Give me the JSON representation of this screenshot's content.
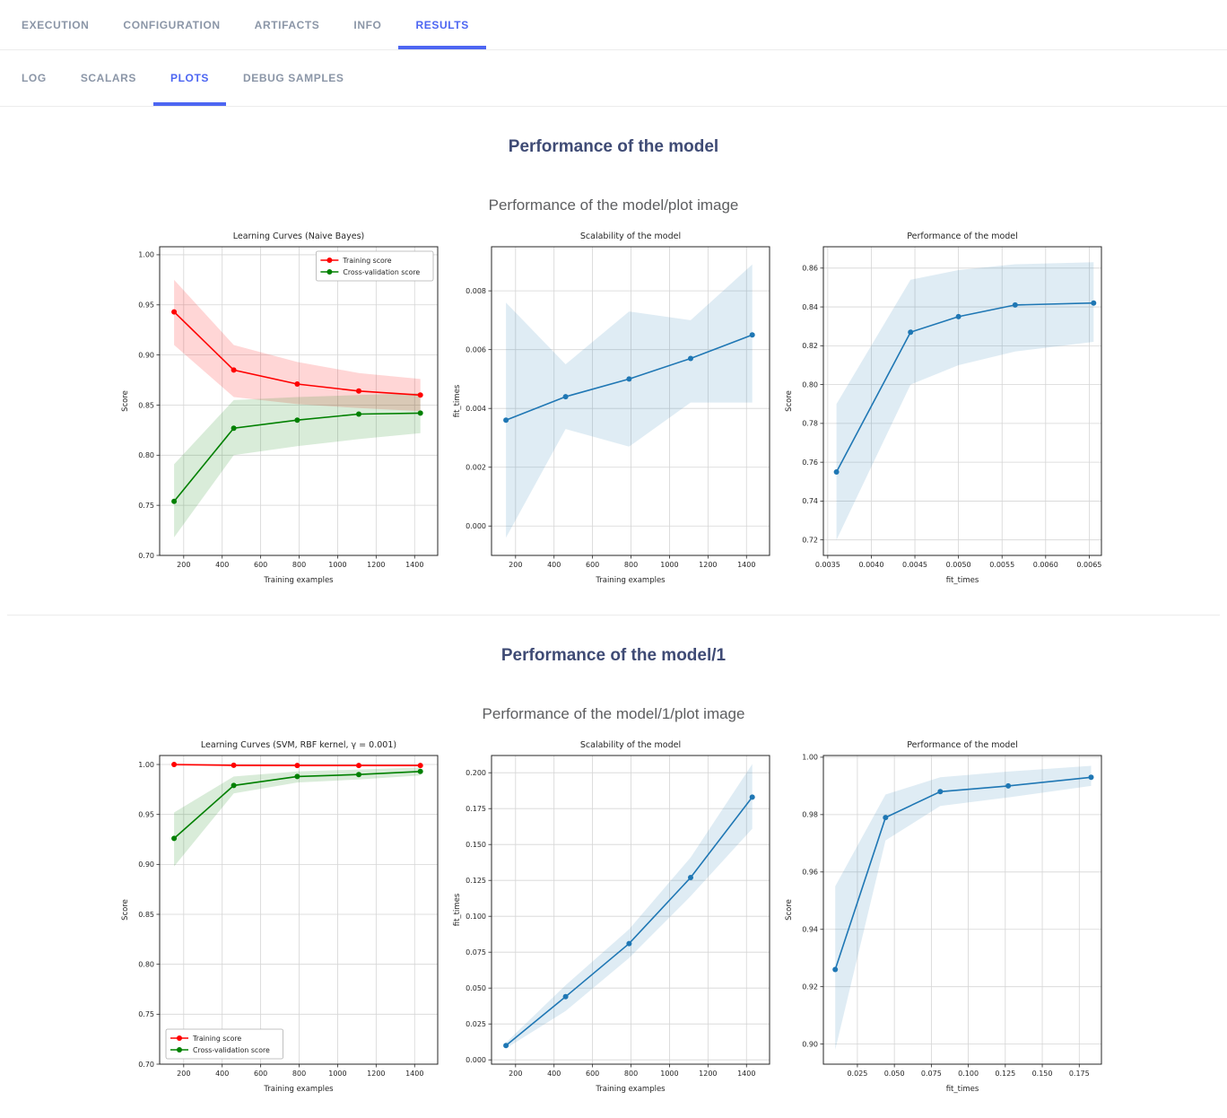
{
  "header": {
    "tabs": [
      "EXECUTION",
      "CONFIGURATION",
      "ARTIFACTS",
      "INFO",
      "RESULTS"
    ],
    "active_tab": "RESULTS",
    "subtabs": [
      "LOG",
      "SCALARS",
      "PLOTS",
      "DEBUG SAMPLES"
    ],
    "active_subtab": "PLOTS",
    "accent_color": "#4d66f2"
  },
  "sections": [
    {
      "title": "Performance of the model",
      "subtitle": "Performance of the model/plot image"
    },
    {
      "title": "Performance of the model/1",
      "subtitle": "Performance of the model/1/plot image"
    }
  ],
  "chart_data": [
    {
      "type": "line",
      "title": "Learning Curves (Naive Bayes)",
      "xlabel": "Training examples",
      "ylabel": "Score",
      "x": [
        150,
        460,
        790,
        1110,
        1430
      ],
      "xlim": [
        75,
        1520
      ],
      "ylim": [
        0.7,
        1.008
      ],
      "xticks": [
        200,
        400,
        600,
        800,
        1000,
        1200,
        1400
      ],
      "xtick_decimals": 0,
      "yticks": [
        0.7,
        0.75,
        0.8,
        0.85,
        0.9,
        0.95,
        1.0
      ],
      "ytick_decimals": 2,
      "grid": true,
      "legend": {
        "visible": true,
        "position": "upper-right"
      },
      "series": [
        {
          "name": "Training score",
          "color": "#ff0000",
          "band_opacity": 0.16,
          "values": [
            0.943,
            0.885,
            0.871,
            0.864,
            0.86
          ],
          "band_lower": [
            0.91,
            0.858,
            0.851,
            0.847,
            0.844
          ],
          "band_upper": [
            0.975,
            0.91,
            0.893,
            0.882,
            0.876
          ]
        },
        {
          "name": "Cross-validation score",
          "color": "#008000",
          "band_opacity": 0.15,
          "values": [
            0.754,
            0.827,
            0.835,
            0.841,
            0.842
          ],
          "band_lower": [
            0.718,
            0.8,
            0.809,
            0.816,
            0.822
          ],
          "band_upper": [
            0.791,
            0.855,
            0.858,
            0.86,
            0.862
          ]
        }
      ]
    },
    {
      "type": "line",
      "title": "Scalability of the model",
      "xlabel": "Training examples",
      "ylabel": "fit_times",
      "x": [
        150,
        460,
        790,
        1110,
        1430
      ],
      "xlim": [
        75,
        1520
      ],
      "ylim": [
        -0.001,
        0.0095
      ],
      "xticks": [
        200,
        400,
        600,
        800,
        1000,
        1200,
        1400
      ],
      "xtick_decimals": 0,
      "yticks": [
        0.0,
        0.002,
        0.004,
        0.006,
        0.008
      ],
      "ytick_decimals": 3,
      "grid": true,
      "legend": {
        "visible": false
      },
      "series": [
        {
          "name": "fit_times",
          "color": "#1f77b4",
          "band_opacity": 0.14,
          "values": [
            0.0036,
            0.0044,
            0.005,
            0.0057,
            0.0065
          ],
          "band_lower": [
            -0.0004,
            0.0033,
            0.0027,
            0.0042,
            0.0042
          ],
          "band_upper": [
            0.0076,
            0.0055,
            0.0073,
            0.007,
            0.0089
          ]
        }
      ]
    },
    {
      "type": "line",
      "title": "Performance of the model",
      "xlabel": "fit_times",
      "ylabel": "Score",
      "x": [
        0.0036,
        0.00445,
        0.005,
        0.00565,
        0.00655
      ],
      "xlim": [
        0.00345,
        0.00664
      ],
      "ylim": [
        0.712,
        0.871
      ],
      "xticks": [
        0.0035,
        0.004,
        0.0045,
        0.005,
        0.0055,
        0.006,
        0.0065
      ],
      "xtick_decimals": 4,
      "yticks": [
        0.72,
        0.74,
        0.76,
        0.78,
        0.8,
        0.82,
        0.84,
        0.86
      ],
      "ytick_decimals": 2,
      "grid": true,
      "legend": {
        "visible": false
      },
      "series": [
        {
          "name": "Score",
          "color": "#1f77b4",
          "band_opacity": 0.14,
          "values": [
            0.755,
            0.827,
            0.835,
            0.841,
            0.842
          ],
          "band_lower": [
            0.72,
            0.8,
            0.81,
            0.817,
            0.822
          ],
          "band_upper": [
            0.79,
            0.854,
            0.859,
            0.862,
            0.863
          ]
        }
      ]
    },
    {
      "type": "line",
      "title": "Learning Curves (SVM, RBF kernel, γ = 0.001)",
      "xlabel": "Training examples",
      "ylabel": "Score",
      "x": [
        150,
        460,
        790,
        1110,
        1430
      ],
      "xlim": [
        75,
        1520
      ],
      "ylim": [
        0.7,
        1.009
      ],
      "xticks": [
        200,
        400,
        600,
        800,
        1000,
        1200,
        1400
      ],
      "xtick_decimals": 0,
      "yticks": [
        0.7,
        0.75,
        0.8,
        0.85,
        0.9,
        0.95,
        1.0
      ],
      "ytick_decimals": 2,
      "grid": true,
      "legend": {
        "visible": true,
        "position": "lower-left"
      },
      "series": [
        {
          "name": "Training score",
          "color": "#ff0000",
          "band_opacity": 0.16,
          "values": [
            1.0,
            0.9992,
            0.999,
            0.999,
            0.999
          ],
          "band_lower": [
            0.9985,
            0.998,
            0.998,
            0.998,
            0.998
          ],
          "band_upper": [
            1.0005,
            1.0,
            1.0,
            1.0,
            1.0
          ]
        },
        {
          "name": "Cross-validation score",
          "color": "#008000",
          "band_opacity": 0.15,
          "values": [
            0.926,
            0.979,
            0.988,
            0.99,
            0.993
          ],
          "band_lower": [
            0.898,
            0.971,
            0.982,
            0.985,
            0.989
          ],
          "band_upper": [
            0.952,
            0.988,
            0.993,
            0.995,
            0.997
          ]
        }
      ]
    },
    {
      "type": "line",
      "title": "Scalability of the model",
      "xlabel": "Training examples",
      "ylabel": "fit_times",
      "x": [
        150,
        460,
        790,
        1110,
        1430
      ],
      "xlim": [
        75,
        1520
      ],
      "ylim": [
        -0.003,
        0.212
      ],
      "xticks": [
        200,
        400,
        600,
        800,
        1000,
        1200,
        1400
      ],
      "xtick_decimals": 0,
      "yticks": [
        0.0,
        0.025,
        0.05,
        0.075,
        0.1,
        0.125,
        0.15,
        0.175,
        0.2
      ],
      "ytick_decimals": 3,
      "grid": true,
      "legend": {
        "visible": false
      },
      "series": [
        {
          "name": "fit_times",
          "color": "#1f77b4",
          "band_opacity": 0.14,
          "values": [
            0.01,
            0.044,
            0.081,
            0.127,
            0.183
          ],
          "band_lower": [
            0.008,
            0.034,
            0.071,
            0.114,
            0.161
          ],
          "band_upper": [
            0.012,
            0.052,
            0.091,
            0.141,
            0.206
          ]
        }
      ]
    },
    {
      "type": "line",
      "title": "Performance of the model",
      "xlabel": "fit_times",
      "ylabel": "Score",
      "x": [
        0.01,
        0.044,
        0.081,
        0.127,
        0.183
      ],
      "xlim": [
        0.002,
        0.19
      ],
      "ylim": [
        0.893,
        1.0006
      ],
      "xticks": [
        0.025,
        0.05,
        0.075,
        0.1,
        0.125,
        0.15,
        0.175
      ],
      "xtick_decimals": 3,
      "yticks": [
        0.9,
        0.92,
        0.94,
        0.96,
        0.98,
        1.0
      ],
      "ytick_decimals": 2,
      "grid": true,
      "legend": {
        "visible": false
      },
      "series": [
        {
          "name": "Score",
          "color": "#1f77b4",
          "band_opacity": 0.14,
          "values": [
            0.926,
            0.979,
            0.988,
            0.99,
            0.993
          ],
          "band_lower": [
            0.898,
            0.971,
            0.983,
            0.986,
            0.99
          ],
          "band_upper": [
            0.955,
            0.987,
            0.993,
            0.995,
            0.997
          ]
        }
      ]
    }
  ]
}
